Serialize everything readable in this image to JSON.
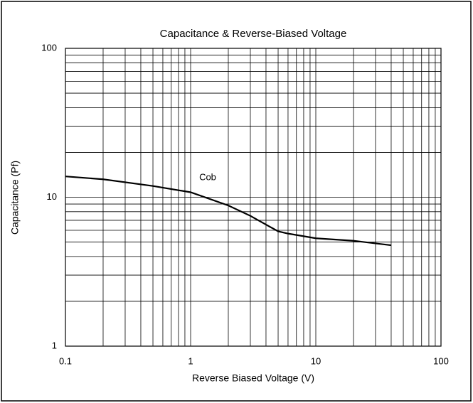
{
  "chart_data": {
    "type": "line",
    "title": "Capacitance & Reverse-Biased Voltage",
    "x_label": "Reverse Biased Voltage (V)",
    "y_label": "Capacitance (Pf)",
    "x": [
      0.1,
      0.2,
      0.5,
      1,
      2,
      3,
      5,
      6,
      10,
      20,
      40
    ],
    "series": [
      {
        "name": "Cob",
        "color": "#000000",
        "values": [
          13.8,
          13.2,
          11.9,
          10.8,
          8.8,
          7.5,
          5.9,
          5.7,
          5.3,
          5.1,
          4.76
        ]
      }
    ],
    "xlim": [
      0.1,
      100
    ],
    "ylim": [
      1,
      100
    ],
    "xticks": [
      0.1,
      1,
      10,
      100
    ],
    "yticks": [
      1,
      10,
      100
    ],
    "xlog": true,
    "ylog": true,
    "grid": true,
    "minor_grid": true
  }
}
